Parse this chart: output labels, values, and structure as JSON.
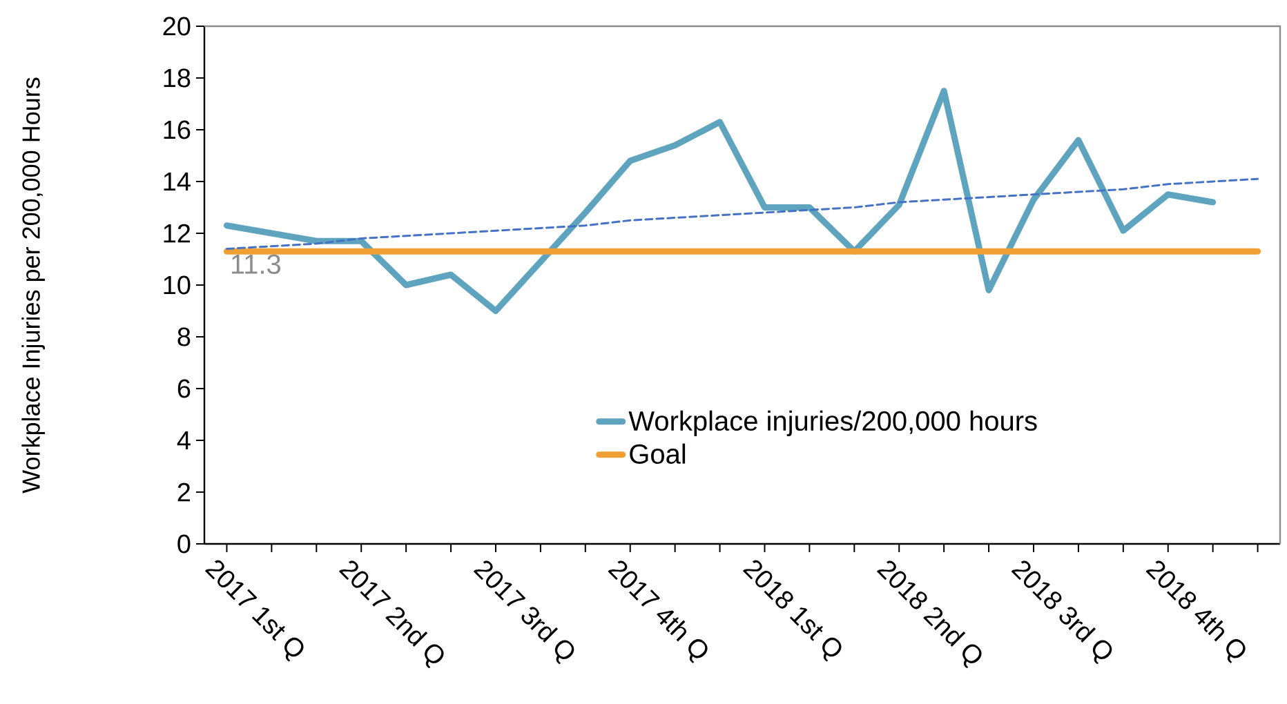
{
  "chart_data": {
    "type": "line",
    "ylabel": "Workplace Injuries per 200,000 Hours",
    "categories": [
      "2017 1st Q",
      null,
      null,
      "2017 2nd Q",
      null,
      null,
      "2017 3rd Q",
      null,
      null,
      "2017 4th Q",
      null,
      null,
      "2018 1st Q",
      null,
      null,
      "2018 2nd Q",
      null,
      null,
      "2018 3rd Q",
      null,
      null,
      "2018 4th Q",
      null,
      null
    ],
    "ylim": [
      0,
      20
    ],
    "yticks": [
      0,
      2,
      4,
      6,
      8,
      10,
      12,
      14,
      16,
      18,
      20
    ],
    "legend": "bottom",
    "series": [
      {
        "name": "Workplace injuries/200,000 hours",
        "color": "#5ea4bf",
        "values": [
          12.3,
          12.0,
          11.7,
          11.7,
          10.0,
          10.4,
          9.0,
          10.9,
          12.8,
          14.8,
          15.4,
          16.3,
          13.0,
          13.0,
          11.3,
          13.1,
          17.5,
          9.8,
          13.3,
          15.6,
          12.1,
          13.5,
          13.2,
          null
        ]
      },
      {
        "name": "Goal",
        "color": "#f0a033",
        "values": [
          11.3,
          11.3,
          11.3,
          11.3,
          11.3,
          11.3,
          11.3,
          11.3,
          11.3,
          11.3,
          11.3,
          11.3,
          11.3,
          11.3,
          11.3,
          11.3,
          11.3,
          11.3,
          11.3,
          11.3,
          11.3,
          11.3,
          11.3,
          11.3
        ],
        "value_labels": [
          "11.3",
          null,
          null,
          null,
          null,
          null,
          null,
          null,
          null,
          null,
          null,
          null,
          null,
          null,
          null,
          null,
          null,
          null,
          null,
          null,
          null,
          null,
          null,
          null
        ]
      },
      {
        "type": "line",
        "color": "#4472c4",
        "line_style": "dashed",
        "values": [
          11.4,
          11.5,
          11.6,
          11.8,
          11.9,
          12.0,
          12.1,
          12.2,
          12.3,
          12.5,
          12.6,
          12.7,
          12.8,
          12.9,
          13.0,
          13.2,
          13.3,
          13.4,
          13.5,
          13.6,
          13.7,
          13.9,
          14.0,
          14.1
        ]
      }
    ]
  }
}
